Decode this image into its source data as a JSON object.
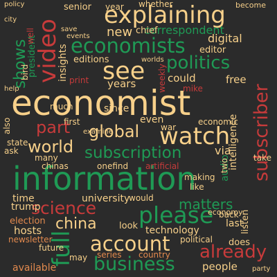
{
  "palette": {
    "background": "#2b2b2b",
    "red": "#c73b3b",
    "orange": "#e38a4e",
    "cream": "#f7d08a",
    "green": "#1f9a55",
    "light_green": "#9bd07c",
    "yellow_green": "#d9e47a"
  },
  "words": [
    "economist",
    "information",
    "explaining",
    "economists",
    "see",
    "video",
    "watch",
    "please",
    "account",
    "full",
    "subscription",
    "world",
    "science",
    "politics",
    "global",
    "business",
    "already",
    "subscriber",
    "china",
    "matters",
    "shows",
    "part",
    "correspondent",
    "new",
    "digital",
    "editions",
    "years",
    "editor",
    "university",
    "hosts",
    "election",
    "technology",
    "people",
    "available",
    "series",
    "country",
    "trump",
    "time",
    "economy",
    "listen",
    "last",
    "back",
    "intelligence",
    "via",
    "audio",
    "even",
    "chief",
    "insights",
    "president",
    "free",
    "could",
    "whether",
    "since",
    "year",
    "become",
    "senior",
    "policy",
    "city",
    "like",
    "making",
    "two",
    "chinas",
    "onefind",
    "state",
    "ask",
    "also",
    "bird",
    "well",
    "mike",
    "since",
    "war",
    "economic",
    "first",
    "look",
    "does",
    "newsletter",
    "future",
    "may",
    "political",
    "would",
    "artificial",
    "print",
    "weekly",
    "events",
    "worlds",
    "economics",
    "much",
    "many",
    "examine",
    "take",
    "help",
    "party",
    "save"
  ]
}
